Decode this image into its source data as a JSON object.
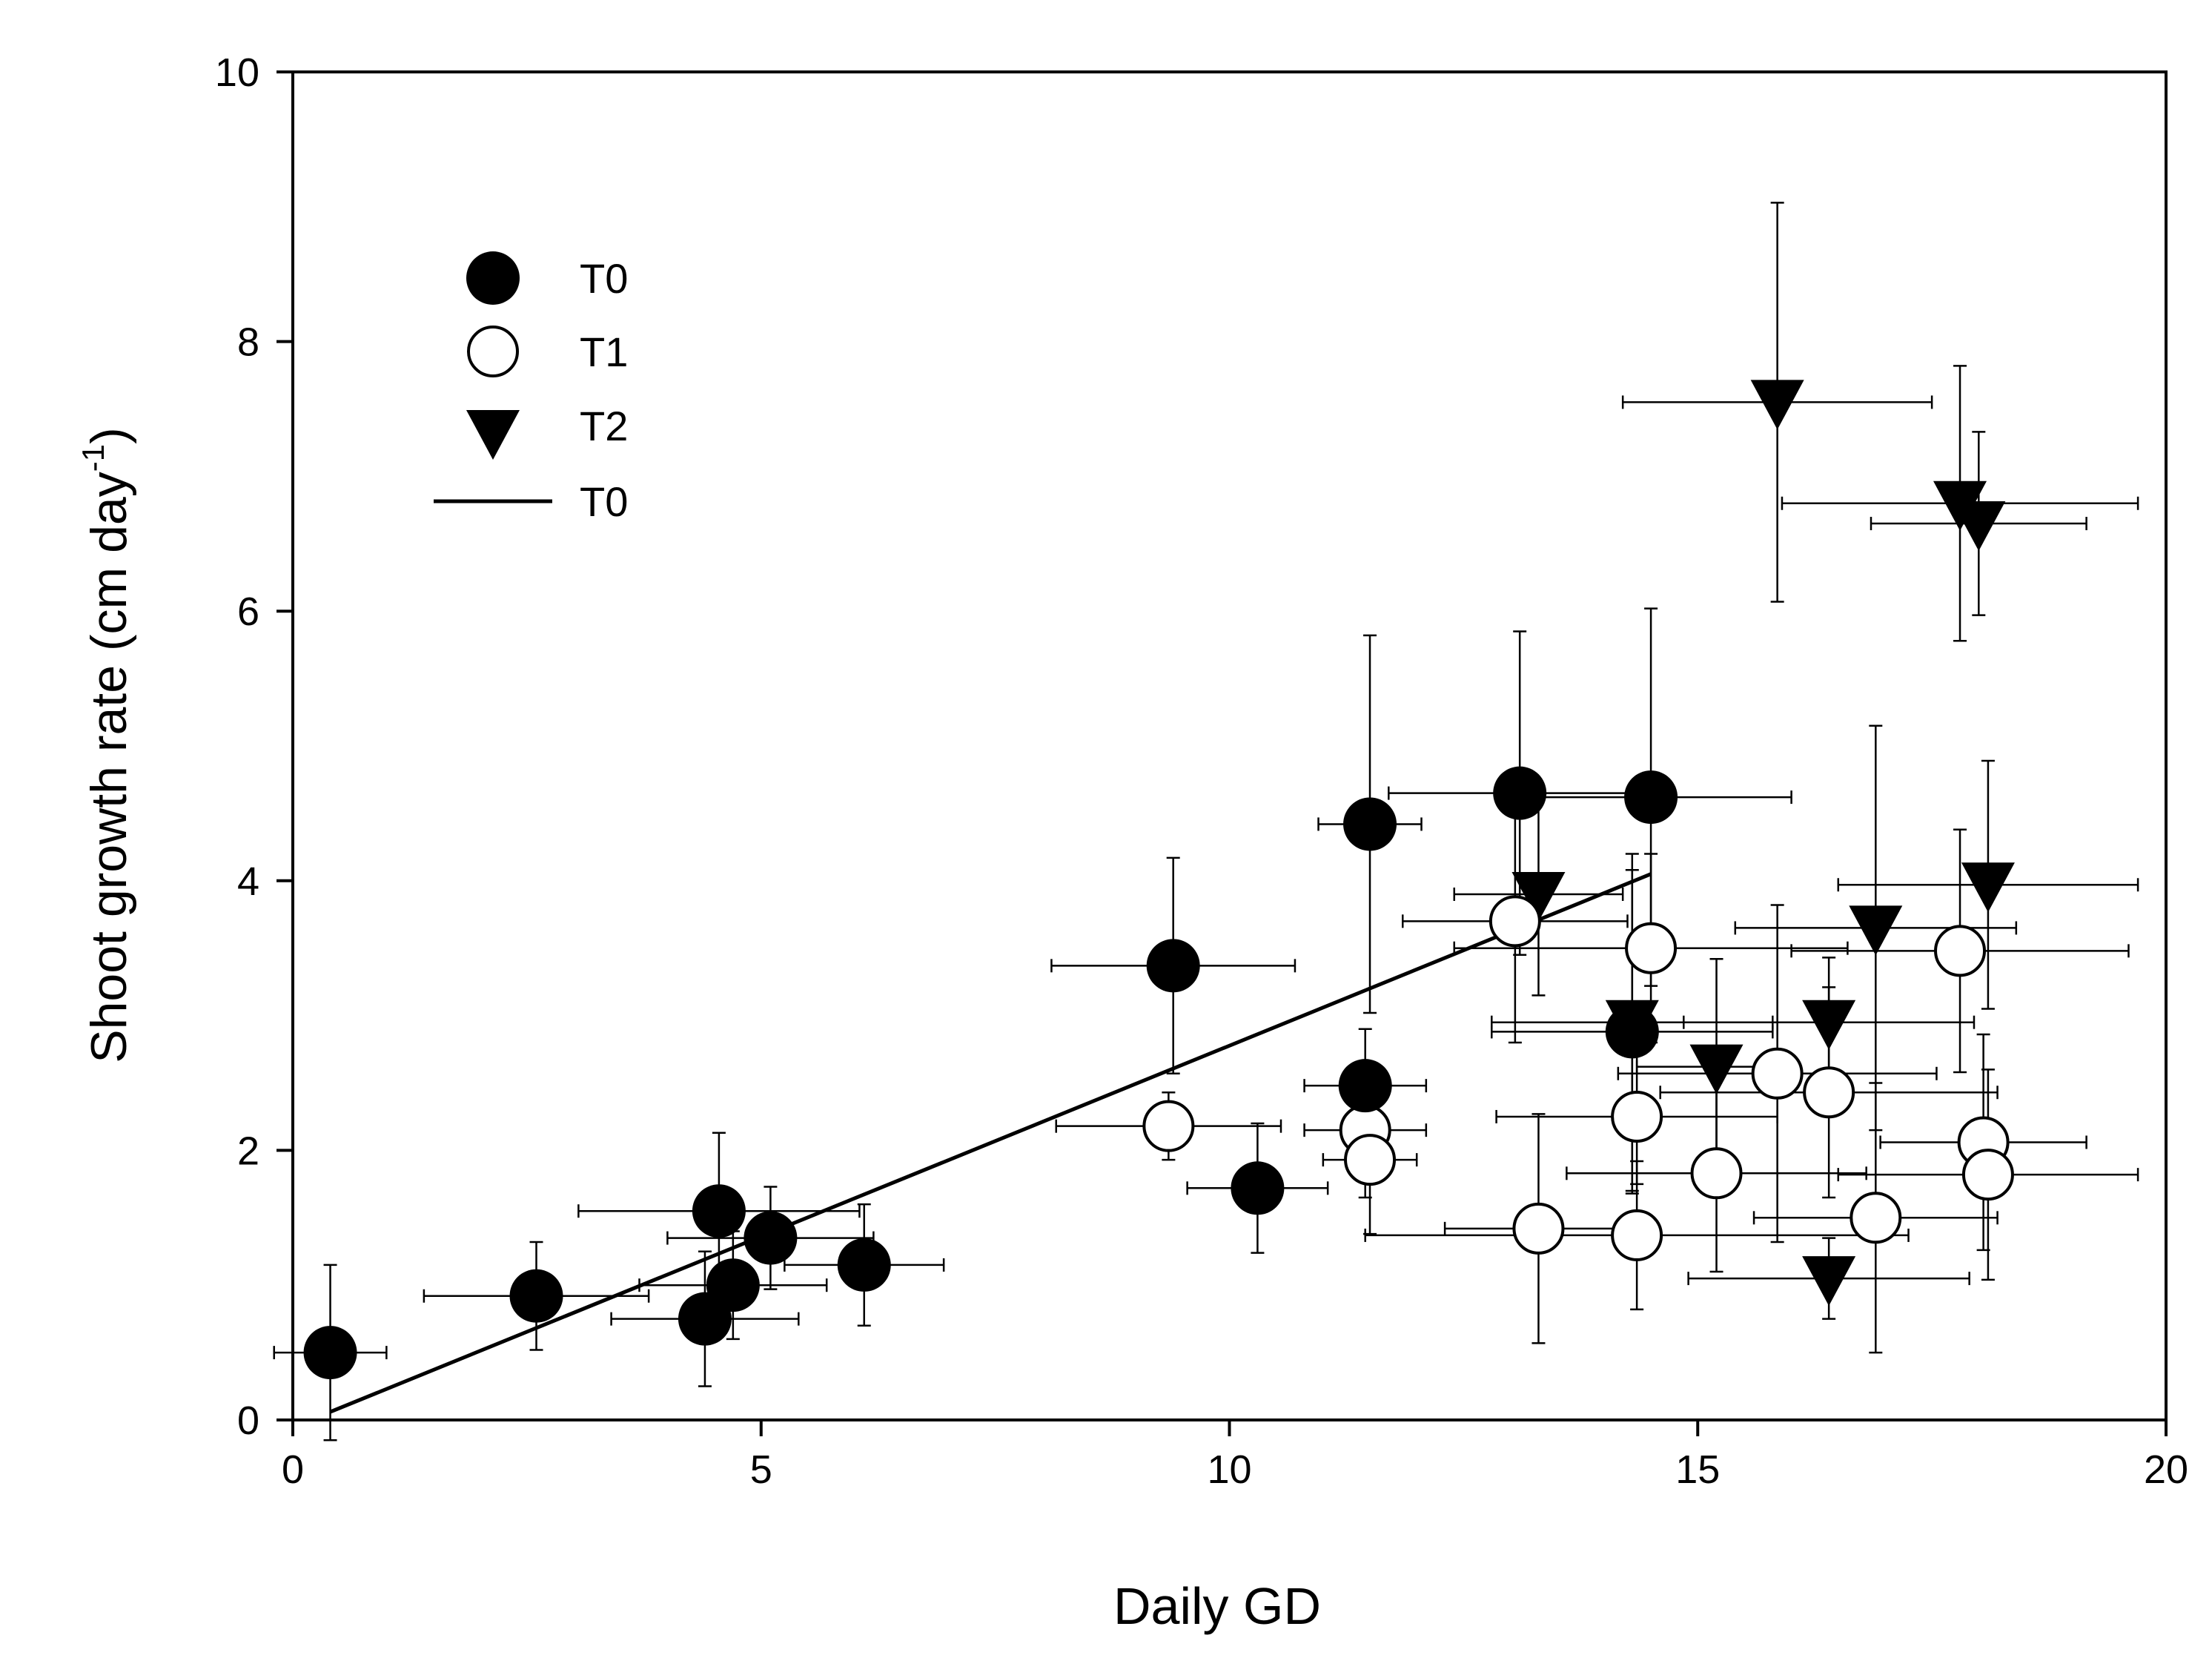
{
  "chart_data": {
    "type": "scatter",
    "title": "",
    "xlabel": "Daily GD",
    "ylabel": "Shoot growth rate (cm day",
    "ylabel_superscript": "-1",
    "ylabel_close": ")",
    "xlim": [
      0,
      20
    ],
    "ylim": [
      0,
      10
    ],
    "x_ticks": [
      0,
      5,
      10,
      15,
      20
    ],
    "y_ticks": [
      0,
      2,
      4,
      6,
      8,
      10
    ],
    "grid": false,
    "legend_position": "top-left",
    "legend": [
      {
        "label": "T0",
        "marker": "filled-circle"
      },
      {
        "label": "T1",
        "marker": "open-circle"
      },
      {
        "label": "T2",
        "marker": "filled-down-triangle"
      },
      {
        "label": "T0",
        "marker": "line"
      }
    ],
    "series": [
      {
        "name": "T0",
        "marker": "filled-circle",
        "points": [
          {
            "x": 0.4,
            "y": 0.5,
            "xerr": 0.6,
            "yerr": 0.65
          },
          {
            "x": 2.6,
            "y": 0.92,
            "xerr": 1.2,
            "yerr": 0.4
          },
          {
            "x": 4.4,
            "y": 0.75,
            "xerr": 1.0,
            "yerr": 0.5
          },
          {
            "x": 4.55,
            "y": 1.55,
            "xerr": 1.5,
            "yerr": 0.58
          },
          {
            "x": 4.7,
            "y": 1.0,
            "xerr": 1.0,
            "yerr": 0.4
          },
          {
            "x": 5.1,
            "y": 1.35,
            "xerr": 1.1,
            "yerr": 0.38
          },
          {
            "x": 6.1,
            "y": 1.15,
            "xerr": 0.85,
            "yerr": 0.45
          },
          {
            "x": 9.4,
            "y": 3.37,
            "xerr": 1.3,
            "yerr": 0.8
          },
          {
            "x": 10.3,
            "y": 1.72,
            "xerr": 0.75,
            "yerr": 0.48
          },
          {
            "x": 11.45,
            "y": 2.48,
            "xerr": 0.65,
            "yerr": 0.42
          },
          {
            "x": 11.5,
            "y": 4.42,
            "xerr": 0.55,
            "yerr": 1.4
          },
          {
            "x": 13.1,
            "y": 4.65,
            "xerr": 1.4,
            "yerr": 1.2
          },
          {
            "x": 14.3,
            "y": 2.88,
            "xerr": 1.5,
            "yerr": 1.2
          },
          {
            "x": 14.5,
            "y": 4.62,
            "xerr": 1.5,
            "yerr": 1.4
          }
        ]
      },
      {
        "name": "T1",
        "marker": "open-circle",
        "points": [
          {
            "x": 9.35,
            "y": 2.18,
            "xerr": 1.2,
            "yerr": 0.25
          },
          {
            "x": 11.45,
            "y": 2.15,
            "xerr": 0.65,
            "yerr": 0.5
          },
          {
            "x": 11.5,
            "y": 1.93,
            "xerr": 0.5,
            "yerr": 0.55
          },
          {
            "x": 13.05,
            "y": 3.7,
            "xerr": 1.2,
            "yerr": 0.9
          },
          {
            "x": 13.3,
            "y": 1.42,
            "xerr": 1.0,
            "yerr": 0.85
          },
          {
            "x": 14.35,
            "y": 1.37,
            "xerr": 2.9,
            "yerr": 0.55
          },
          {
            "x": 14.35,
            "y": 2.25,
            "xerr": 1.5,
            "yerr": 0.5
          },
          {
            "x": 14.5,
            "y": 3.5,
            "xerr": 2.1,
            "yerr": 0.7
          },
          {
            "x": 15.2,
            "y": 1.83,
            "xerr": 1.6,
            "yerr": 0.73
          },
          {
            "x": 15.85,
            "y": 2.57,
            "xerr": 1.7,
            "yerr": 1.25
          },
          {
            "x": 16.4,
            "y": 2.43,
            "xerr": 1.8,
            "yerr": 0.78
          },
          {
            "x": 16.9,
            "y": 1.5,
            "xerr": 1.3,
            "yerr": 1.0
          },
          {
            "x": 17.8,
            "y": 3.48,
            "xerr": 1.8,
            "yerr": 0.9
          },
          {
            "x": 18.05,
            "y": 2.06,
            "xerr": 1.1,
            "yerr": 0.8
          },
          {
            "x": 18.1,
            "y": 1.82,
            "xerr": 1.6,
            "yerr": 0.78
          }
        ]
      },
      {
        "name": "T2",
        "marker": "filled-down-triangle",
        "points": [
          {
            "x": 13.3,
            "y": 3.9,
            "xerr": 0.9,
            "yerr": 0.75
          },
          {
            "x": 14.3,
            "y": 2.95,
            "xerr": 1.5,
            "yerr": 1.25
          },
          {
            "x": 15.2,
            "y": 2.62,
            "xerr": 0.85,
            "yerr": 0.8
          },
          {
            "x": 15.85,
            "y": 7.55,
            "xerr": 1.65,
            "yerr": 1.48
          },
          {
            "x": 16.4,
            "y": 2.95,
            "xerr": 1.55,
            "yerr": 0.48
          },
          {
            "x": 16.4,
            "y": 1.05,
            "xerr": 1.5,
            "yerr": 0.3
          },
          {
            "x": 16.9,
            "y": 3.65,
            "xerr": 1.5,
            "yerr": 1.5
          },
          {
            "x": 17.8,
            "y": 6.8,
            "xerr": 1.9,
            "yerr": 1.02
          },
          {
            "x": 18.0,
            "y": 6.65,
            "xerr": 1.15,
            "yerr": 0.68
          },
          {
            "x": 18.1,
            "y": 3.97,
            "xerr": 1.6,
            "yerr": 0.92
          }
        ]
      }
    ],
    "fit_line": {
      "name": "T0",
      "x": [
        0.4,
        14.5
      ],
      "y": [
        0.06,
        4.05
      ]
    }
  }
}
